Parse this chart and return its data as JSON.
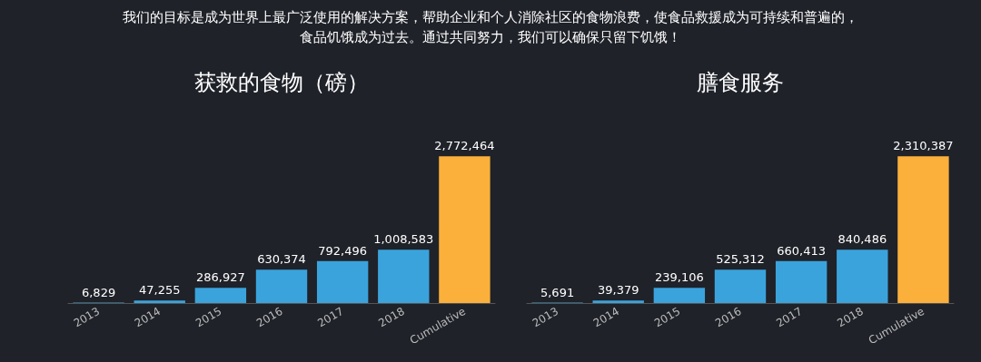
{
  "chart_data": [
    {
      "type": "bar",
      "title": "获救的食物（磅）",
      "annotations": [
        "我们的目标是成为世界上最广泛使用的解决方案，帮助企业和个人消除社区的食物浪费，使食品救援成为可持续和普遍的，",
        "食品饥饿成为过去。通过共同努力，我们可以确保只留下饥饿！"
      ],
      "categories": [
        "2013",
        "2014",
        "2015",
        "2016",
        "2017",
        "2018",
        "Cumulative"
      ],
      "values": [
        6829,
        47255,
        286927,
        630374,
        792496,
        1008583,
        2772464
      ],
      "value_labels": [
        "6,829",
        "47,255",
        "286,927",
        "630,374",
        "792,496",
        "1,008,583",
        "2,772,464"
      ],
      "colors": [
        "#3ba3dc",
        "#3ba3dc",
        "#3ba3dc",
        "#3ba3dc",
        "#3ba3dc",
        "#3ba3dc",
        "#fbb03b"
      ],
      "tick_labels": "x"
    },
    {
      "type": "bar",
      "title": "膳食服务",
      "categories": [
        "2013",
        "2014",
        "2015",
        "2016",
        "2017",
        "2018",
        "Cumulative"
      ],
      "values": [
        5691,
        39379,
        239106,
        525312,
        660413,
        840486,
        2310387
      ],
      "value_labels": [
        "5,691",
        "39,379",
        "239,106",
        "525,312",
        "660,413",
        "840,486",
        "2,310,387"
      ],
      "colors": [
        "#3ba3dc",
        "#3ba3dc",
        "#3ba3dc",
        "#3ba3dc",
        "#3ba3dc",
        "#3ba3dc",
        "#fbb03b"
      ],
      "tick_labels": "x"
    }
  ]
}
